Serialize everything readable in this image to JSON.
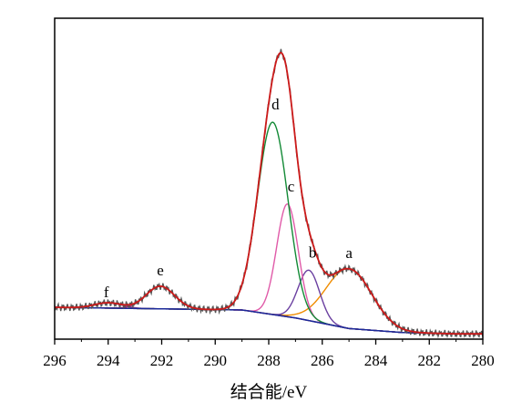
{
  "chart_data": {
    "type": "line",
    "title": "",
    "xlabel": "结合能/eV",
    "ylabel": "",
    "xlim": [
      296,
      280
    ],
    "x_reversed": true,
    "y_ticks_shown": false,
    "grid": false,
    "xticks": [
      "296",
      "294",
      "292",
      "290",
      "288",
      "286",
      "284",
      "282",
      "280"
    ],
    "series_colors": {
      "raw": "#555555",
      "envelope": "#cc1a1a",
      "a": "#f08c00",
      "b": "#6a3fa0",
      "c": "#e05aa8",
      "d": "#138a36",
      "e": "#b03060",
      "f": "#7a3e8a",
      "background": "#1a2a9a"
    },
    "background": {
      "x": [
        296,
        289,
        287,
        285,
        283,
        281,
        280
      ],
      "y": [
        0.0,
        -0.01,
        -0.04,
        -0.08,
        -0.095,
        -0.1,
        -0.1
      ]
    },
    "peaks": [
      {
        "label": "a",
        "center": 285.0,
        "height": 0.225,
        "fwhm": 2.0
      },
      {
        "label": "b",
        "center": 286.5,
        "height": 0.19,
        "fwhm": 0.95
      },
      {
        "label": "c",
        "center": 287.3,
        "height": 0.425,
        "fwhm": 0.95
      },
      {
        "label": "d",
        "center": 287.85,
        "height": 0.725,
        "fwhm": 1.35
      },
      {
        "label": "e",
        "center": 292.05,
        "height": 0.085,
        "fwhm": 1.25
      },
      {
        "label": "f",
        "center": 294.0,
        "height": 0.02,
        "fwhm": 1.2
      }
    ],
    "raw_maxima": [
      {
        "x": 287.55,
        "y": 1.025
      },
      {
        "x": 284.9,
        "y": 0.255
      },
      {
        "x": 292.05,
        "y": 0.09
      }
    ],
    "ylim": [
      -0.12,
      1.09
    ]
  }
}
